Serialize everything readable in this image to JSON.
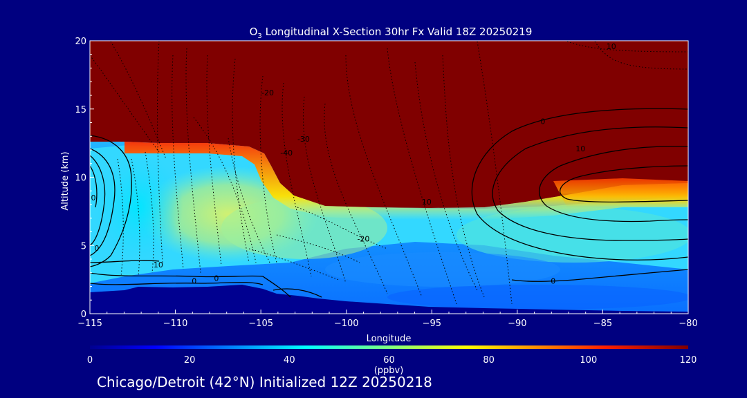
{
  "chart_data": {
    "type": "heatmap",
    "title_prefix": "O",
    "title_sub": "3",
    "title_rest": " Longitudinal X-Section 30hr  Fx Valid 18Z 20250219",
    "xlabel": "Longitude",
    "ylabel": "Altitude (km)",
    "xlim": [
      -115,
      -80
    ],
    "ylim": [
      0,
      20
    ],
    "x_ticks": [
      "−115",
      "−110",
      "−105",
      "−100",
      "−95",
      "−90",
      "−85",
      "−80"
    ],
    "x_tick_values": [
      -115,
      -110,
      -105,
      -100,
      -95,
      -90,
      -85,
      -80
    ],
    "y_ticks": [
      "0",
      "5",
      "10",
      "15",
      "20"
    ],
    "y_tick_values": [
      0,
      5,
      10,
      15,
      20
    ],
    "colorbar": {
      "min": 0,
      "max": 120,
      "ticks": [
        "0",
        "20",
        "40",
        "60",
        "80",
        "100",
        "120"
      ],
      "tick_values": [
        0,
        20,
        40,
        60,
        80,
        100,
        120
      ],
      "unit": "(ppbv)",
      "colormap": "jet"
    },
    "field_description_ppbv": {
      "stratosphere_above_tropopause": 120,
      "tropopause_height_km": [
        {
          "lon": -115,
          "alt": 12.5
        },
        {
          "lon": -110,
          "alt": 12.5
        },
        {
          "lon": -106,
          "alt": 12.3
        },
        {
          "lon": -104,
          "alt": 9.0
        },
        {
          "lon": -100,
          "alt": 7.9
        },
        {
          "lon": -95,
          "alt": 7.9
        },
        {
          "lon": -90,
          "alt": 8.0
        },
        {
          "lon": -85,
          "alt": 9.0
        },
        {
          "lon": -80,
          "alt": 9.6
        }
      ],
      "terrain_height_km": [
        {
          "lon": -115,
          "alt": 1.6
        },
        {
          "lon": -110,
          "alt": 2.0
        },
        {
          "lon": -106,
          "alt": 2.0
        },
        {
          "lon": -102,
          "alt": 1.0
        },
        {
          "lon": -95,
          "alt": 0.5
        },
        {
          "lon": -80,
          "alt": 0.3
        }
      ]
    },
    "contour_labels": [
      {
        "text": "10",
        "lon": -84.5,
        "alt": 19.6
      },
      {
        "text": "-20",
        "lon": -104.6,
        "alt": 16.2
      },
      {
        "text": "-30",
        "lon": -102.5,
        "alt": 12.8
      },
      {
        "text": "-40",
        "lon": -103.5,
        "alt": 11.8
      },
      {
        "text": "0",
        "lon": -88.5,
        "alt": 14.1
      },
      {
        "text": "10",
        "lon": -86.3,
        "alt": 12.1
      },
      {
        "text": "10",
        "lon": -95.3,
        "alt": 8.2
      },
      {
        "text": "-20",
        "lon": -99.0,
        "alt": 5.5
      },
      {
        "text": "10",
        "lon": -111.0,
        "alt": 3.6
      },
      {
        "text": "0",
        "lon": -114.6,
        "alt": 4.8
      },
      {
        "text": "0",
        "lon": -114.8,
        "alt": 8.5
      },
      {
        "text": "0",
        "lon": -108.9,
        "alt": 2.4
      },
      {
        "text": "0",
        "lon": -107.6,
        "alt": 2.6
      },
      {
        "text": "0",
        "lon": -87.9,
        "alt": 2.4
      }
    ]
  },
  "footer": {
    "text": "Chicago/Detroit (42°N) Initialized 12Z 20250218"
  },
  "colors": {
    "background": "#000080",
    "text": "#ffffff",
    "stratosphere": "#800000",
    "contour": "#000000"
  }
}
